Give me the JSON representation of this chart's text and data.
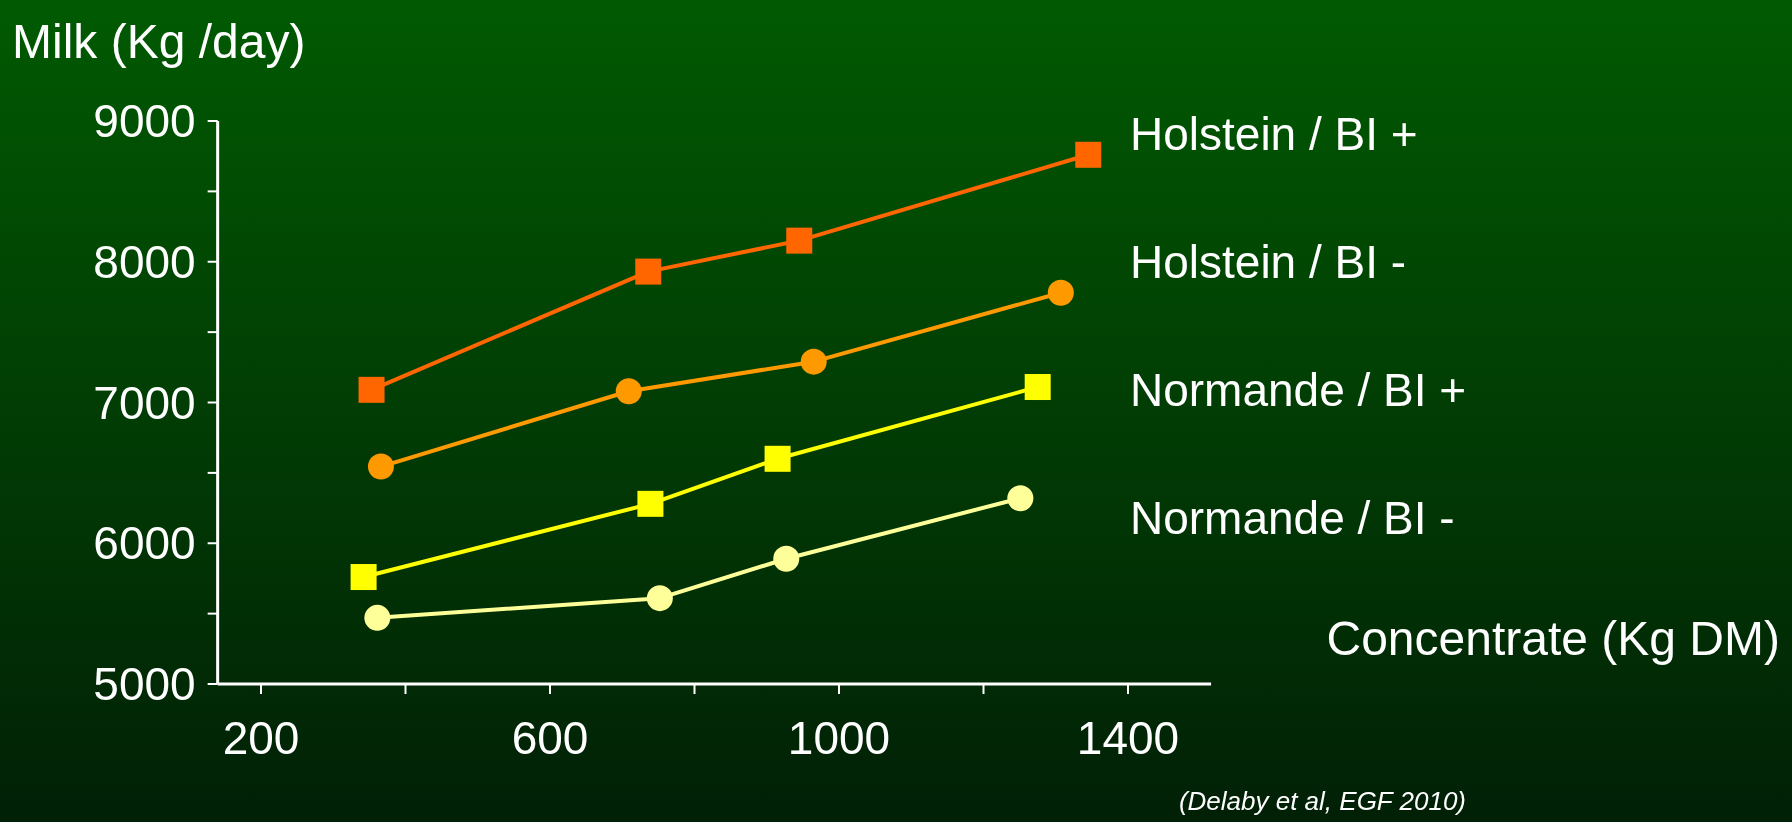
{
  "chart_data": {
    "type": "line",
    "ylabel": "Milk (Kg /day)",
    "xlabel": "Concentrate (Kg DM)",
    "annotations": [
      "(Delaby et al, EGF 2010)"
    ],
    "xlim": [
      140,
      1515
    ],
    "xticks": [
      200,
      {
        "value": 400,
        "label": null
      },
      600,
      {
        "value": 800,
        "label": null
      },
      1000,
      {
        "value": 1200,
        "label": null
      },
      1400
    ],
    "ylim": [
      5000,
      9000
    ],
    "yticks": [
      5000,
      {
        "value": 5500,
        "label": null
      },
      6000,
      {
        "value": 6500,
        "label": null
      },
      7000,
      {
        "value": 7500,
        "label": null
      },
      8000,
      {
        "value": 8500,
        "label": null
      },
      9000
    ],
    "grid": false,
    "legend": "right",
    "series": [
      {
        "name": "Holstein / BI +",
        "color": "#ff6600",
        "marker": "square",
        "x": [
          353,
          736,
          945,
          1345
        ],
        "values": [
          7090,
          7930,
          8150,
          8760
        ]
      },
      {
        "name": "Holstein / BI -",
        "color": "#ff9900",
        "marker": "circle",
        "x": [
          366,
          709,
          965,
          1307
        ],
        "values": [
          6545,
          7080,
          7290,
          7780
        ]
      },
      {
        "name": "Normande / BI +",
        "color": "#ffff00",
        "marker": "square",
        "x": [
          342,
          739,
          915,
          1275
        ],
        "values": [
          5760,
          6280,
          6600,
          7110
        ]
      },
      {
        "name": "Normande / BI -",
        "color": "#ffff99",
        "marker": "circle",
        "x": [
          361,
          752,
          927,
          1251
        ],
        "values": [
          5470,
          5610,
          5890,
          6320
        ]
      }
    ]
  }
}
